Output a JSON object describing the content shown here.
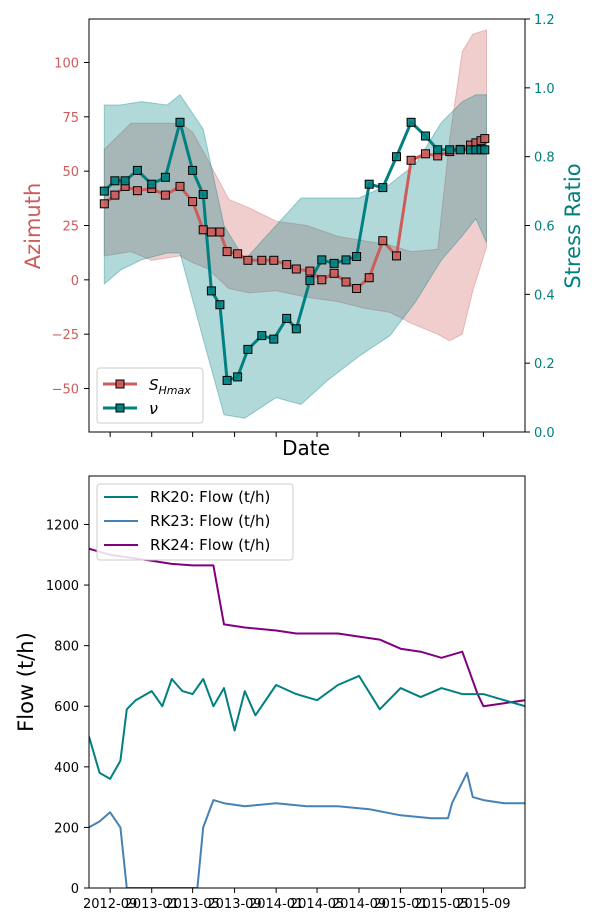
{
  "chart_data": [
    {
      "type": "line",
      "xlabel": "Date",
      "ylabel": "Azimuth",
      "y2label": "Stress Ratio",
      "ylim": [
        -70,
        120
      ],
      "y2lim": [
        0.0,
        1.2
      ],
      "yticks": [
        "−50",
        "−25",
        "0",
        "25",
        "50",
        "75",
        "100"
      ],
      "y2ticks": [
        "0.0",
        "0.2",
        "0.4",
        "0.6",
        "0.8",
        "1.0",
        "1.2"
      ],
      "x_range": [
        "2012-07",
        "2016-01"
      ],
      "x_tick_dates": [
        "2012-09",
        "2013-01",
        "2013-05",
        "2013-09",
        "2014-01",
        "2014-05",
        "2014-09",
        "2015-01",
        "2015-05",
        "2015-09"
      ],
      "legend_position": "lower-left",
      "colors": {
        "shmax": "#cd5c5c",
        "nu": "#008080"
      },
      "series": [
        {
          "name": "S_Hmax",
          "axis": "left",
          "x": [
            "2012-08-15",
            "2012-09-15",
            "2012-10-15",
            "2012-11-20",
            "2013-01-01",
            "2013-02-10",
            "2013-03-25",
            "2013-05-01",
            "2013-06-01",
            "2013-06-25",
            "2013-07-20",
            "2013-08-10",
            "2013-09-10",
            "2013-10-10",
            "2013-11-20",
            "2013-12-25",
            "2014-02-01",
            "2014-03-01",
            "2014-04-10",
            "2014-05-15",
            "2014-06-20",
            "2014-07-25",
            "2014-08-25",
            "2014-10-01",
            "2014-11-10",
            "2014-12-20",
            "2015-02-01",
            "2015-03-15",
            "2015-04-20",
            "2015-05-25",
            "2015-06-25",
            "2015-07-25",
            "2015-08-10",
            "2015-08-25",
            "2015-09-05"
          ],
          "values": [
            35,
            39,
            43,
            41,
            42,
            39,
            43,
            36,
            23,
            22,
            22,
            13,
            12,
            9,
            9,
            9,
            7,
            5,
            4,
            0,
            3,
            -1,
            -4,
            1,
            18,
            11,
            55,
            58,
            57,
            59,
            60,
            62,
            63,
            64,
            65
          ]
        },
        {
          "name": "ν",
          "axis": "right",
          "x": [
            "2012-08-15",
            "2012-09-15",
            "2012-10-15",
            "2012-11-20",
            "2013-01-01",
            "2013-02-10",
            "2013-03-25",
            "2013-05-01",
            "2013-06-01",
            "2013-06-25",
            "2013-07-20",
            "2013-08-10",
            "2013-09-10",
            "2013-10-10",
            "2013-11-20",
            "2013-12-25",
            "2014-02-01",
            "2014-03-01",
            "2014-04-10",
            "2014-05-15",
            "2014-06-20",
            "2014-07-25",
            "2014-08-25",
            "2014-10-01",
            "2014-11-10",
            "2014-12-20",
            "2015-02-01",
            "2015-03-15",
            "2015-04-20",
            "2015-05-25",
            "2015-06-25",
            "2015-07-25",
            "2015-08-10",
            "2015-08-25",
            "2015-09-05"
          ],
          "values": [
            0.7,
            0.73,
            0.73,
            0.76,
            0.72,
            0.74,
            0.9,
            0.76,
            0.69,
            0.41,
            0.37,
            0.15,
            0.16,
            0.24,
            0.28,
            0.27,
            0.33,
            0.3,
            0.44,
            0.5,
            0.49,
            0.5,
            0.51,
            0.72,
            0.71,
            0.8,
            0.9,
            0.86,
            0.82,
            0.82,
            0.82,
            0.82,
            0.82,
            0.82,
            0.82
          ]
        }
      ],
      "bands": [
        {
          "series": "S_Hmax",
          "x": [
            "2012-08-15",
            "2012-11-01",
            "2013-01-01",
            "2013-03-25",
            "2013-05-01",
            "2013-06-15",
            "2013-08-15",
            "2013-10-15",
            "2014-01-01",
            "2014-04-01",
            "2014-07-01",
            "2014-09-15",
            "2014-12-01",
            "2015-02-01",
            "2015-04-20",
            "2015-05-25",
            "2015-07-01",
            "2015-08-01",
            "2015-09-10"
          ],
          "lower": [
            11,
            13,
            9,
            11,
            8,
            5,
            -4,
            -6,
            -5,
            -8,
            -10,
            -13,
            -15,
            -20,
            -25,
            -28,
            -25,
            -5,
            15
          ],
          "upper": [
            60,
            72,
            72,
            72,
            68,
            55,
            37,
            33,
            27,
            25,
            20,
            18,
            16,
            13,
            14,
            65,
            105,
            113,
            115
          ]
        },
        {
          "series": "ν",
          "x": [
            "2012-08-15",
            "2012-10-01",
            "2012-12-01",
            "2013-02-15",
            "2013-03-25",
            "2013-06-01",
            "2013-08-01",
            "2013-10-01",
            "2014-01-01",
            "2014-03-15",
            "2014-06-01",
            "2014-09-01",
            "2014-12-01",
            "2015-02-15",
            "2015-05-01",
            "2015-07-01",
            "2015-08-10",
            "2015-09-10"
          ],
          "lower": [
            0.43,
            0.47,
            0.5,
            0.52,
            0.52,
            0.27,
            0.05,
            0.04,
            0.1,
            0.08,
            0.15,
            0.22,
            0.28,
            0.38,
            0.5,
            0.57,
            0.62,
            0.55
          ],
          "upper": [
            0.95,
            0.95,
            0.96,
            0.95,
            0.98,
            0.88,
            0.6,
            0.5,
            0.6,
            0.68,
            0.68,
            0.68,
            0.72,
            0.78,
            0.9,
            0.96,
            0.98,
            0.98
          ]
        }
      ]
    },
    {
      "type": "line",
      "xlabel": "",
      "ylabel": "Flow (t/h)",
      "ylim": [
        0,
        1360
      ],
      "yticks": [
        "0",
        "200",
        "400",
        "600",
        "800",
        "1000",
        "1200"
      ],
      "x_range": [
        "2012-07",
        "2016-01"
      ],
      "x_tick_labels": [
        "2012-09",
        "2013-01",
        "2013-05",
        "2013-09",
        "2014-01",
        "2014-05",
        "2014-09",
        "2015-01",
        "2015-05",
        "2015-09"
      ],
      "legend_position": "upper-left",
      "colors": {
        "rk20": "#008080",
        "rk23": "#4682b4",
        "rk24": "#800080"
      },
      "series": [
        {
          "name": "RK20: Flow (t/h)",
          "x": [
            "2012-07-01",
            "2012-08-01",
            "2012-09-01",
            "2012-10-01",
            "2012-10-20",
            "2012-11-15",
            "2013-01-01",
            "2013-02-01",
            "2013-03-01",
            "2013-04-01",
            "2013-05-01",
            "2013-06-01",
            "2013-07-01",
            "2013-08-01",
            "2013-09-01",
            "2013-10-01",
            "2013-11-01",
            "2014-01-01",
            "2014-03-01",
            "2014-05-01",
            "2014-07-01",
            "2014-09-01",
            "2014-11-01",
            "2015-01-01",
            "2015-03-01",
            "2015-05-01",
            "2015-07-01",
            "2015-09-01",
            "2015-11-01",
            "2016-01-01"
          ],
          "values": [
            500,
            380,
            360,
            420,
            590,
            620,
            650,
            600,
            690,
            650,
            640,
            690,
            600,
            660,
            520,
            650,
            570,
            670,
            640,
            620,
            670,
            700,
            590,
            660,
            630,
            660,
            640,
            640,
            620,
            600
          ]
        },
        {
          "name": "RK23: Flow (t/h)",
          "x": [
            "2012-07-01",
            "2012-08-01",
            "2012-09-01",
            "2012-10-01",
            "2012-10-20",
            "2012-11-01",
            "2013-01-01",
            "2013-04-01",
            "2013-05-15",
            "2013-06-01",
            "2013-07-01",
            "2013-08-01",
            "2013-10-01",
            "2014-01-01",
            "2014-04-01",
            "2014-07-01",
            "2014-10-01",
            "2015-01-01",
            "2015-04-01",
            "2015-05-20",
            "2015-06-01",
            "2015-07-15",
            "2015-08-01",
            "2015-09-01",
            "2015-11-01",
            "2016-01-01"
          ],
          "values": [
            200,
            220,
            250,
            200,
            0,
            0,
            0,
            0,
            0,
            200,
            290,
            280,
            270,
            280,
            270,
            270,
            260,
            240,
            230,
            230,
            280,
            380,
            300,
            290,
            280,
            280
          ]
        },
        {
          "name": "RK24: Flow (t/h)",
          "x": [
            "2012-07-01",
            "2012-09-01",
            "2012-11-01",
            "2013-01-01",
            "2013-03-01",
            "2013-05-01",
            "2013-07-01",
            "2013-08-01",
            "2013-10-01",
            "2014-01-01",
            "2014-03-01",
            "2014-05-01",
            "2014-07-01",
            "2014-09-01",
            "2014-11-01",
            "2015-01-01",
            "2015-03-01",
            "2015-05-01",
            "2015-07-01",
            "2015-08-15",
            "2015-09-01",
            "2015-11-01",
            "2016-01-01"
          ],
          "values": [
            1120,
            1100,
            1090,
            1080,
            1070,
            1065,
            1065,
            870,
            860,
            850,
            840,
            840,
            840,
            830,
            820,
            790,
            780,
            760,
            780,
            640,
            600,
            610,
            620
          ]
        }
      ]
    }
  ]
}
